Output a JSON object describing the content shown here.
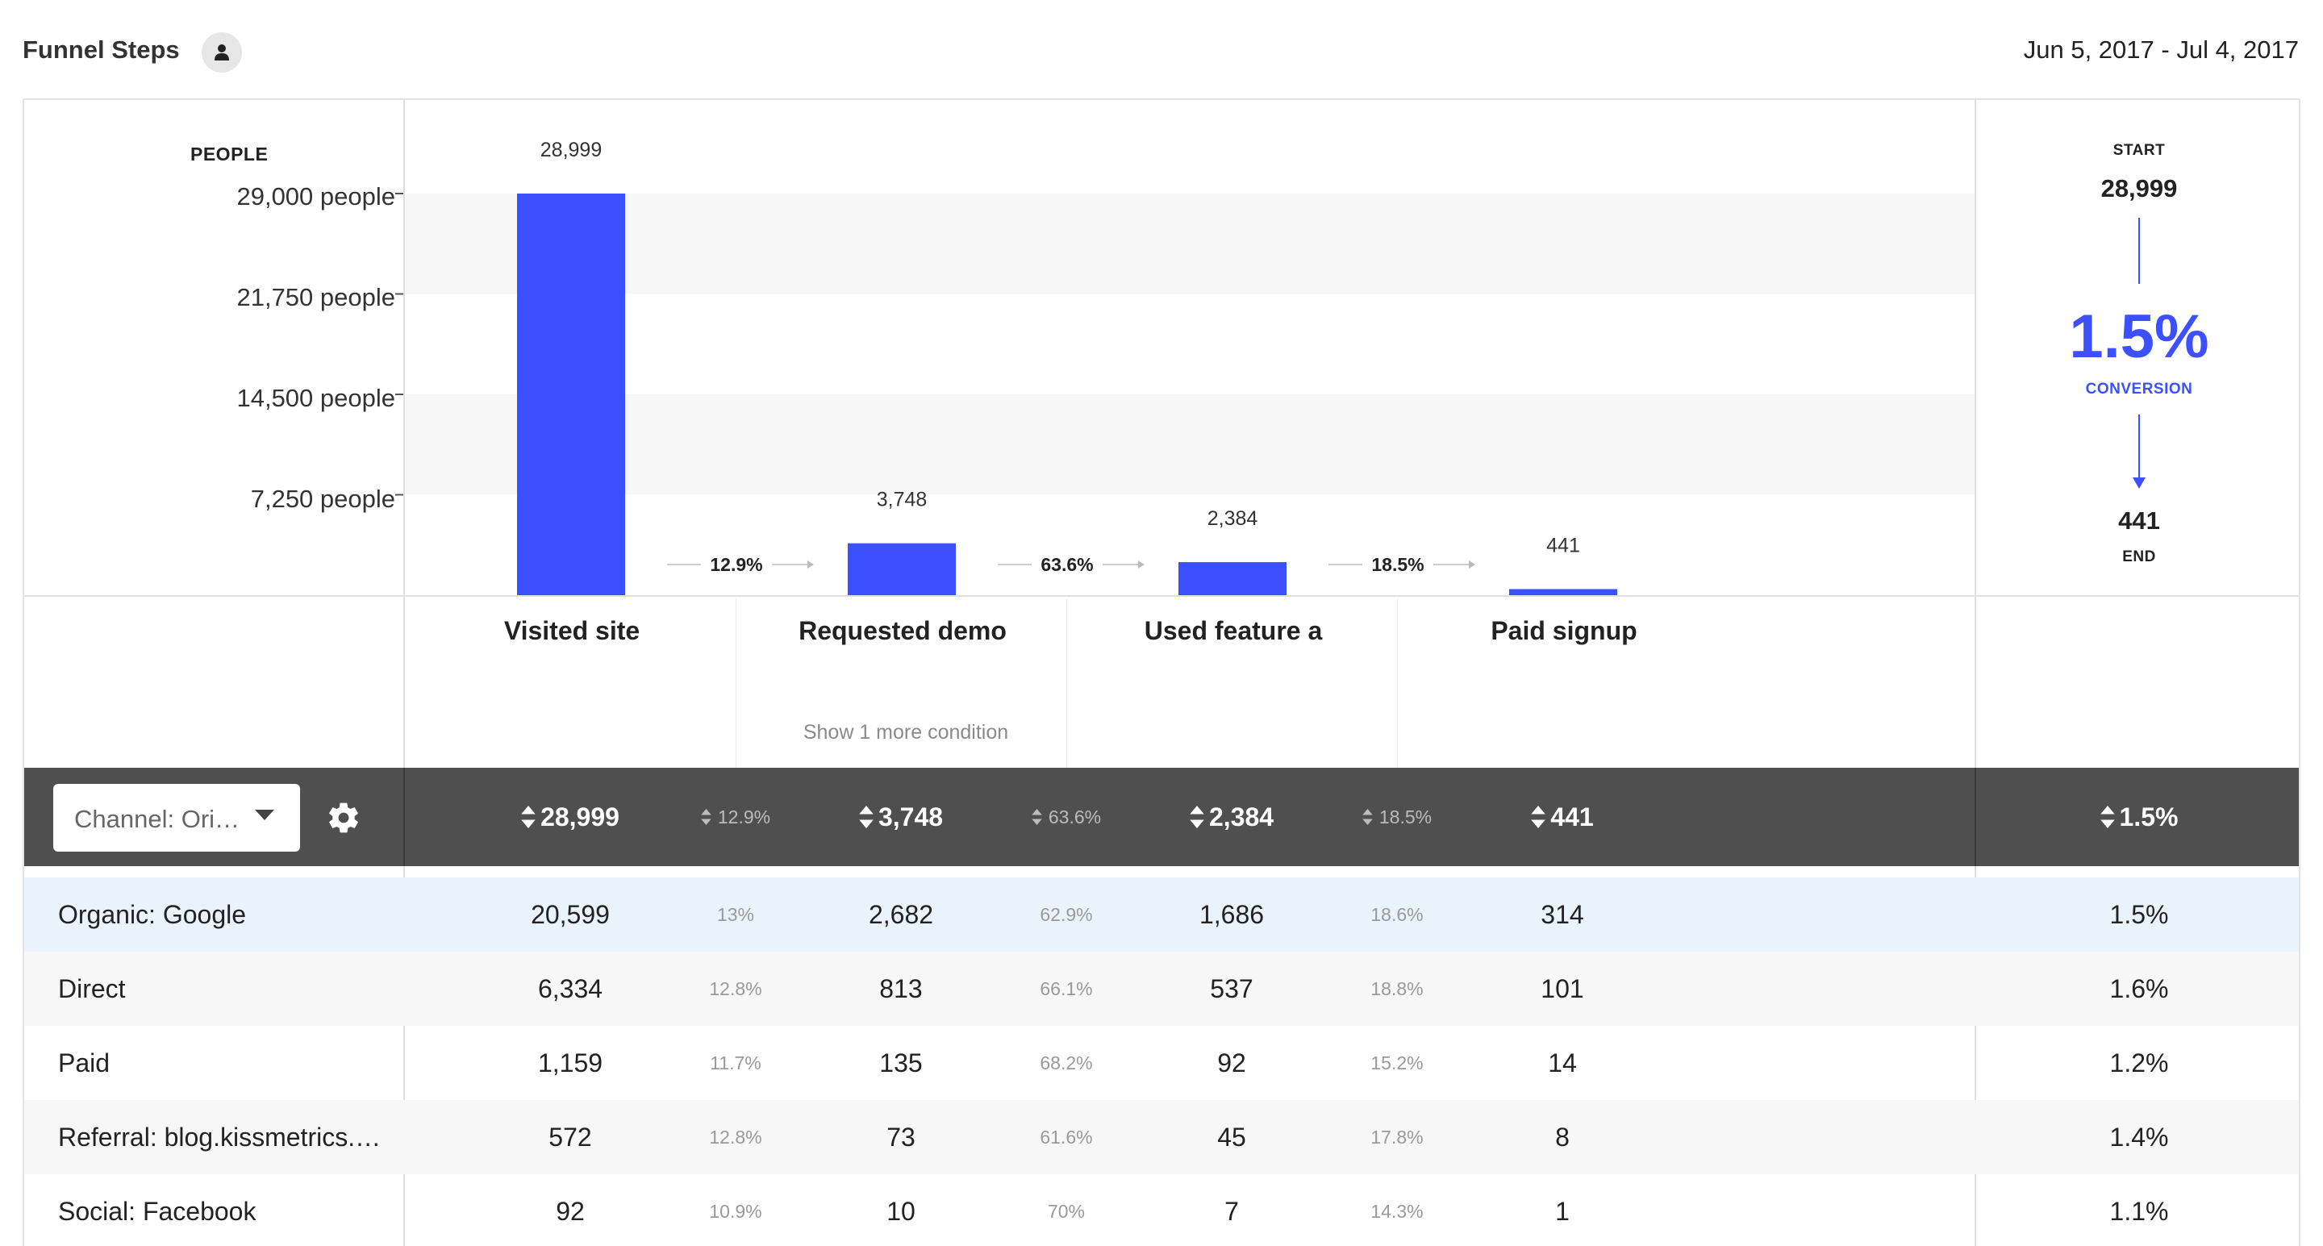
{
  "header": {
    "title": "Funnel Steps",
    "date_range": "Jun 5, 2017 - Jul 4, 2017"
  },
  "chart_data": {
    "type": "bar",
    "title": "Funnel Steps",
    "ylabel": "PEOPLE",
    "ylim": [
      0,
      29000
    ],
    "y_tick_labels": [
      "29,000 people",
      "21,750 people",
      "14,500 people",
      "7,250 people"
    ],
    "categories": [
      "Visited site",
      "Requested demo",
      "Used feature a",
      "Paid signup"
    ],
    "values": [
      28999,
      3748,
      2384,
      441
    ],
    "value_labels": [
      "28,999",
      "3,748",
      "2,384",
      "441"
    ],
    "step_conversion_rates": [
      "12.9%",
      "63.6%",
      "18.5%"
    ],
    "grid": "alternating bands",
    "bar_color": "#3c50ff"
  },
  "steps": {
    "more_condition": "Show 1 more condition"
  },
  "summary": {
    "start_label": "START",
    "start_value": "28,999",
    "conversion_value": "1.5%",
    "conversion_label": "CONVERSION",
    "end_value": "441",
    "end_label": "END"
  },
  "table": {
    "group_by": "Channel: Ori…",
    "totals": [
      "28,999",
      "12.9%",
      "3,748",
      "63.6%",
      "2,384",
      "18.5%",
      "441"
    ],
    "total_conversion": "1.5%",
    "rows": [
      {
        "name": "Organic: Google",
        "cells": [
          "20,599",
          "13%",
          "2,682",
          "62.9%",
          "1,686",
          "18.6%",
          "314"
        ],
        "conversion": "1.5%"
      },
      {
        "name": "Direct",
        "cells": [
          "6,334",
          "12.8%",
          "813",
          "66.1%",
          "537",
          "18.8%",
          "101"
        ],
        "conversion": "1.6%"
      },
      {
        "name": "Paid",
        "cells": [
          "1,159",
          "11.7%",
          "135",
          "68.2%",
          "92",
          "15.2%",
          "14"
        ],
        "conversion": "1.2%"
      },
      {
        "name": "Referral: blog.kissmetrics.…",
        "cells": [
          "572",
          "12.8%",
          "73",
          "61.6%",
          "45",
          "17.8%",
          "8"
        ],
        "conversion": "1.4%"
      },
      {
        "name": "Social: Facebook",
        "cells": [
          "92",
          "10.9%",
          "10",
          "70%",
          "7",
          "14.3%",
          "1"
        ],
        "conversion": "1.1%"
      }
    ]
  },
  "colors": {
    "accent": "#3c50ff",
    "table_header_bg": "#4f4f4f",
    "highlight_row": "#eaf3fc"
  }
}
